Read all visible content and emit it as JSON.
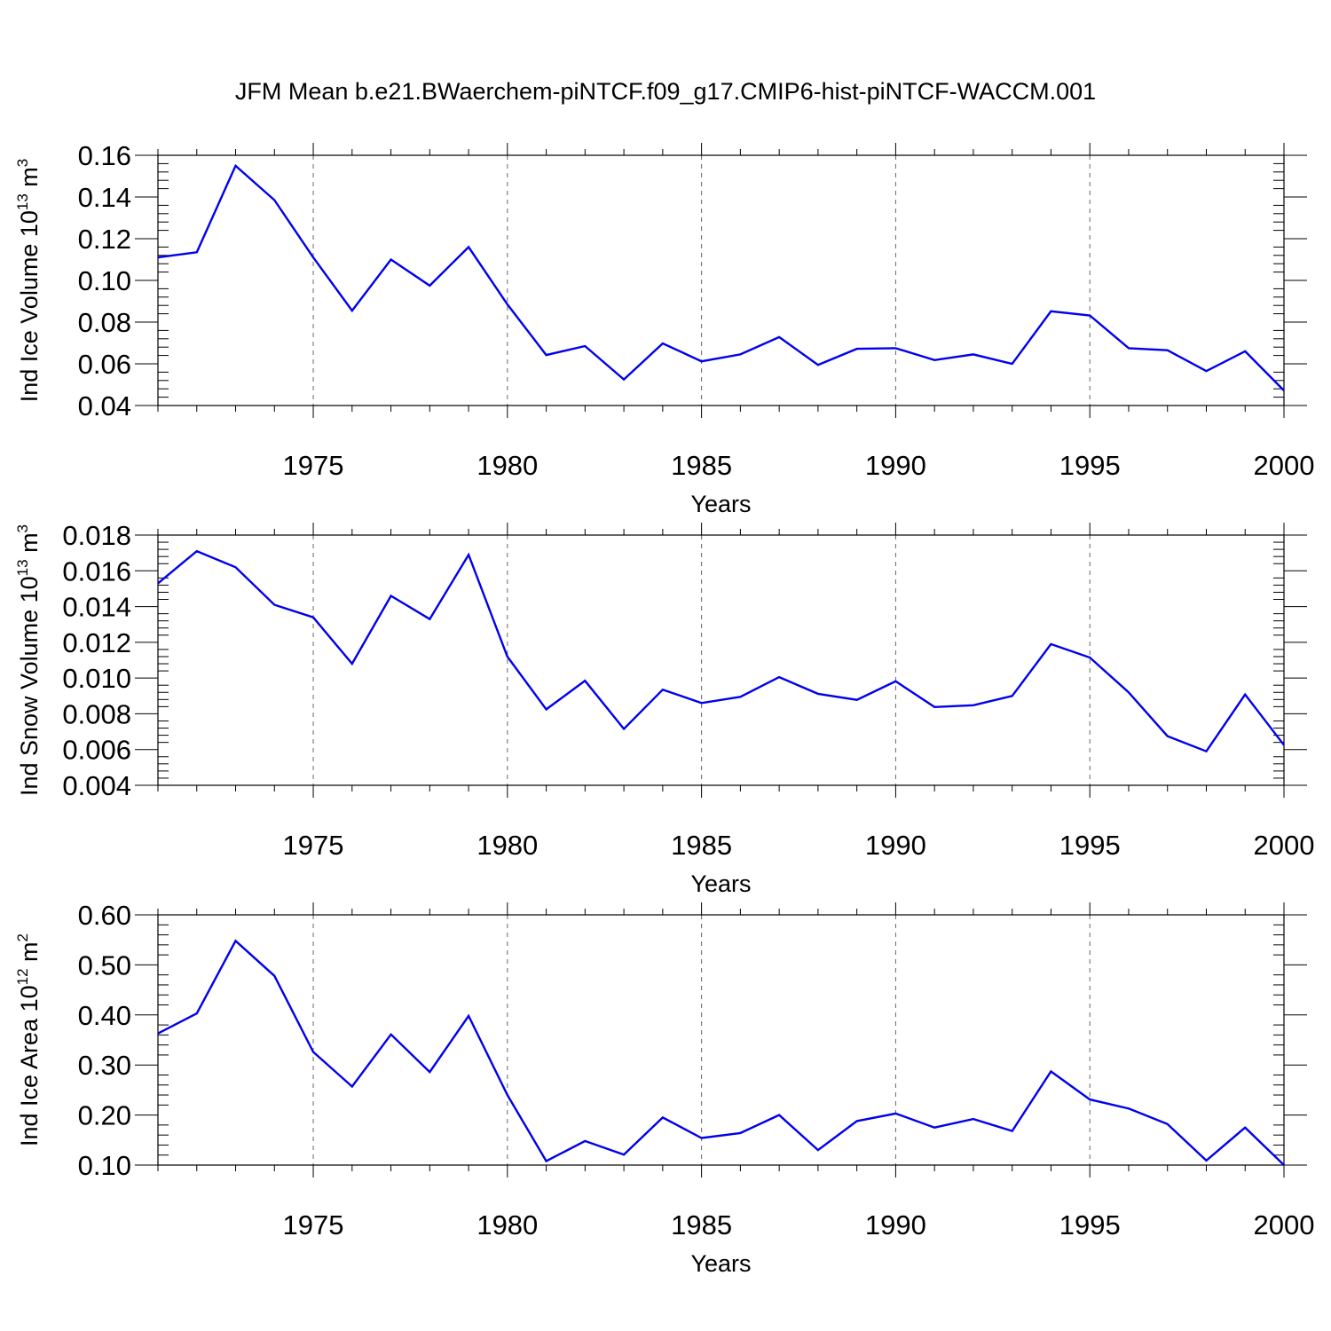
{
  "title": "JFM Mean b.e21.BWaerchem-piNTCF.f09_g17.CMIP6-hist-piNTCF-WACCM.001",
  "colors": {
    "series": "#0000ee",
    "axis": "#000000",
    "grid": "#666666"
  },
  "chart_data": [
    {
      "type": "line",
      "ylabel_main": "Ind Ice Volume 10",
      "ylabel_exp": "13",
      "ylabel_unit": " m",
      "ylabel_unit_exp": "3",
      "xlabel": "Years",
      "xlim": [
        1971,
        2000
      ],
      "ylim": [
        0.04,
        0.16
      ],
      "yticks": [
        0.04,
        0.06,
        0.08,
        0.1,
        0.12,
        0.14,
        0.16
      ],
      "ytick_labels": [
        "0.04",
        "0.06",
        "0.08",
        "0.10",
        "0.12",
        "0.14",
        "0.16"
      ],
      "xticks": [
        1975,
        1980,
        1985,
        1990,
        1995,
        2000
      ],
      "xtick_labels": [
        "1975",
        "1980",
        "1985",
        "1990",
        "1995",
        "2000"
      ],
      "x": [
        1971,
        1972,
        1973,
        1974,
        1975,
        1976,
        1977,
        1978,
        1979,
        1980,
        1981,
        1982,
        1983,
        1984,
        1985,
        1986,
        1987,
        1988,
        1989,
        1990,
        1991,
        1992,
        1993,
        1994,
        1995,
        1996,
        1997,
        1998,
        1999,
        2000
      ],
      "y": [
        0.111,
        0.1135,
        0.155,
        0.1385,
        0.111,
        0.0855,
        0.11,
        0.0975,
        0.116,
        0.0885,
        0.0642,
        0.0685,
        0.0525,
        0.0698,
        0.0612,
        0.0645,
        0.0728,
        0.0595,
        0.0672,
        0.0675,
        0.0618,
        0.0645,
        0.06,
        0.0852,
        0.0832,
        0.0675,
        0.0665,
        0.0565,
        0.066,
        0.0472
      ]
    },
    {
      "type": "line",
      "ylabel_main": "Ind Snow Volume 10",
      "ylabel_exp": "13",
      "ylabel_unit": " m",
      "ylabel_unit_exp": "3",
      "xlabel": "Years",
      "xlim": [
        1971,
        2000
      ],
      "ylim": [
        0.004,
        0.018
      ],
      "yticks": [
        0.004,
        0.006,
        0.008,
        0.01,
        0.012,
        0.014,
        0.016,
        0.018
      ],
      "ytick_labels": [
        "0.004",
        "0.006",
        "0.008",
        "0.010",
        "0.012",
        "0.014",
        "0.016",
        "0.018"
      ],
      "xticks": [
        1975,
        1980,
        1985,
        1990,
        1995,
        2000
      ],
      "xtick_labels": [
        "1975",
        "1980",
        "1985",
        "1990",
        "1995",
        "2000"
      ],
      "x": [
        1971,
        1972,
        1973,
        1974,
        1975,
        1976,
        1977,
        1978,
        1979,
        1980,
        1981,
        1982,
        1983,
        1984,
        1985,
        1986,
        1987,
        1988,
        1989,
        1990,
        1991,
        1992,
        1993,
        1994,
        1995,
        1996,
        1997,
        1998,
        1999,
        2000
      ],
      "y": [
        0.0153,
        0.0171,
        0.0162,
        0.0141,
        0.0134,
        0.0108,
        0.0146,
        0.0133,
        0.0169,
        0.0112,
        0.00825,
        0.00985,
        0.00715,
        0.00935,
        0.0086,
        0.00895,
        0.01005,
        0.00912,
        0.00878,
        0.00982,
        0.00838,
        0.00848,
        0.009,
        0.0119,
        0.01115,
        0.0092,
        0.00675,
        0.0059,
        0.00908,
        0.00625
      ]
    },
    {
      "type": "line",
      "ylabel_main": "Ind Ice Area 10",
      "ylabel_exp": "12",
      "ylabel_unit": " m",
      "ylabel_unit_exp": "2",
      "xlabel": "Years",
      "xlim": [
        1971,
        2000
      ],
      "ylim": [
        0.1,
        0.6
      ],
      "yticks": [
        0.1,
        0.2,
        0.3,
        0.4,
        0.5,
        0.6
      ],
      "ytick_labels": [
        "0.10",
        "0.20",
        "0.30",
        "0.40",
        "0.50",
        "0.60"
      ],
      "xticks": [
        1975,
        1980,
        1985,
        1990,
        1995,
        2000
      ],
      "xtick_labels": [
        "1975",
        "1980",
        "1985",
        "1990",
        "1995",
        "2000"
      ],
      "x": [
        1971,
        1972,
        1973,
        1974,
        1975,
        1976,
        1977,
        1978,
        1979,
        1980,
        1981,
        1982,
        1983,
        1984,
        1985,
        1986,
        1987,
        1988,
        1989,
        1990,
        1991,
        1992,
        1993,
        1994,
        1995,
        1996,
        1997,
        1998,
        1999,
        2000
      ],
      "y": [
        0.363,
        0.403,
        0.548,
        0.478,
        0.326,
        0.257,
        0.361,
        0.286,
        0.398,
        0.24,
        0.108,
        0.148,
        0.121,
        0.195,
        0.154,
        0.164,
        0.2,
        0.13,
        0.188,
        0.203,
        0.175,
        0.192,
        0.168,
        0.287,
        0.231,
        0.213,
        0.182,
        0.109,
        0.175,
        0.1
      ]
    }
  ]
}
